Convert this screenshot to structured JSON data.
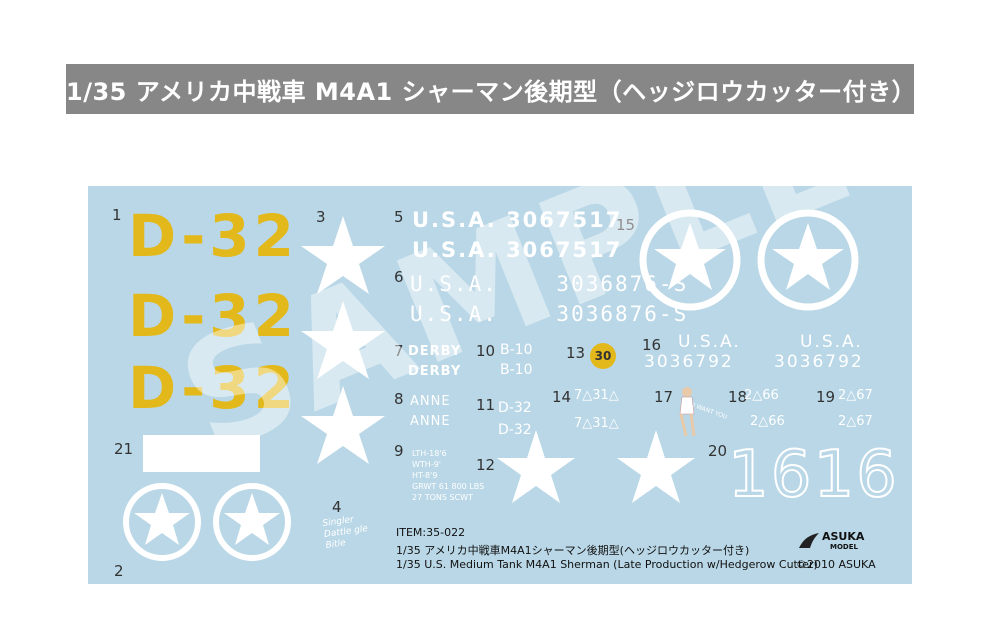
{
  "title": "1/35 アメリカ中戦車 M4A1 シャーマン後期型（ヘッジロウカッター付き）",
  "decal_sheet": {
    "numbers": [
      "1",
      "2",
      "3",
      "4",
      "5",
      "6",
      "7",
      "8",
      "9",
      "10",
      "11",
      "12",
      "13",
      "14",
      "15",
      "16",
      "17",
      "18",
      "19",
      "20",
      "21"
    ],
    "d32_large": [
      "D-32",
      "D-32",
      "D-32"
    ],
    "usa_3067517": [
      "U.S.A. 3067517",
      "U.S.A. 3067517"
    ],
    "usa_3036876": [
      "U.S.A.    3036876-S",
      "U.S.A.    3036876-S"
    ],
    "derby": [
      "DERBY",
      "DERBY"
    ],
    "anne": [
      "ANNE",
      "ANNE"
    ],
    "b10": [
      "B-10",
      "B-10"
    ],
    "d32_small": [
      "D-32",
      "D-32"
    ],
    "badge_30": "30",
    "triangles_731": [
      "7△31△",
      "7△31△"
    ],
    "pinup_text": "I WANT YOU",
    "usa_3036792_a": [
      "U.S.A.",
      "3036792"
    ],
    "usa_3036792_b": [
      "U.S.A.",
      "3036792"
    ],
    "code_266": [
      "2△66",
      "2△66"
    ],
    "code_267": [
      "2△67",
      "2△67"
    ],
    "big_number": "1616",
    "weight_stencil": [
      "LTH-18'6",
      "WTH-9'",
      "HT-8'9",
      "GRWT 61 800 LBS",
      "27 TONS SCWT"
    ],
    "signature": [
      "Singler",
      "Dattle gle",
      "Bitle"
    ],
    "watermark": "SAMPLE"
  },
  "caption": {
    "item": "ITEM:35-022",
    "jp": "1/35 アメリカ中戦車M4A1シャーマン後期型(ヘッジロウカッター付き)",
    "en": "1/35 U.S. Medium Tank M4A1 Sherman (Late Production w/Hedgerow Cutter)"
  },
  "brand": {
    "name": "ASUKA",
    "sub": "MODEL",
    "copyright": "©2010 ASUKA"
  },
  "colors": {
    "sheet": "#b9d7e6",
    "yellow": "#e3b81b",
    "title_bar": "#878787"
  }
}
